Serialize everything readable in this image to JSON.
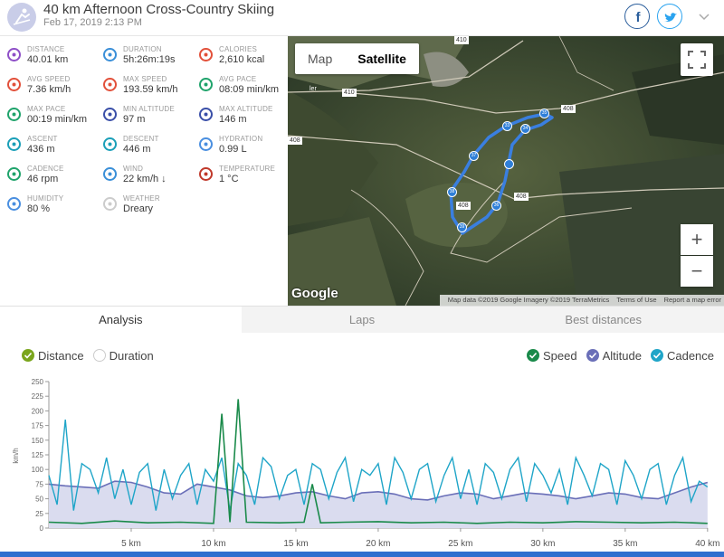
{
  "header": {
    "title": "40 km Afternoon Cross-Country Skiing",
    "subtitle": "Feb 17, 2019 2:13 PM",
    "icons": [
      "skiing-icon",
      "facebook-icon",
      "twitter-icon",
      "chevron-down-icon"
    ]
  },
  "stats": [
    {
      "label": "DISTANCE",
      "value": "40.01 km",
      "icon": "distance-icon",
      "color": "#8e4fc7"
    },
    {
      "label": "DURATION",
      "value": "5h:26m:19s",
      "icon": "stopwatch-icon",
      "color": "#3a8fd8"
    },
    {
      "label": "CALORIES",
      "value": "2,610 kcal",
      "icon": "flame-icon",
      "color": "#e2503a"
    },
    {
      "label": "AVG SPEED",
      "value": "7.36 km/h",
      "icon": "speedometer-icon",
      "color": "#e2503a"
    },
    {
      "label": "MAX SPEED",
      "value": "193.59 km/h",
      "icon": "speedometer-icon",
      "color": "#e2503a"
    },
    {
      "label": "AVG PACE",
      "value": "08:09 min/km",
      "icon": "pace-icon",
      "color": "#1fa36b"
    },
    {
      "label": "MAX PACE",
      "value": "00:19 min/km",
      "icon": "pace-icon",
      "color": "#1fa36b"
    },
    {
      "label": "MIN ALTITUDE",
      "value": "97 m",
      "icon": "mountain-icon",
      "color": "#3a4fa8"
    },
    {
      "label": "MAX ALTITUDE",
      "value": "146 m",
      "icon": "mountain-icon",
      "color": "#3a4fa8"
    },
    {
      "label": "ASCENT",
      "value": "436 m",
      "icon": "ascent-icon",
      "color": "#1a9fb8"
    },
    {
      "label": "DESCENT",
      "value": "446 m",
      "icon": "descent-icon",
      "color": "#1a9fb8"
    },
    {
      "label": "HYDRATION",
      "value": "0.99 L",
      "icon": "water-drops-icon",
      "color": "#4a8fe0"
    },
    {
      "label": "CADENCE",
      "value": "46 rpm",
      "icon": "cadence-icon",
      "color": "#1fa36b"
    },
    {
      "label": "WIND",
      "value": "22 km/h ↓",
      "icon": "wind-icon",
      "color": "#3a8fd8"
    },
    {
      "label": "TEMPERATURE",
      "value": "1 °C",
      "icon": "thermometer-icon",
      "color": "#c0392b"
    },
    {
      "label": "HUMIDITY",
      "value": "80 %",
      "icon": "humidity-icon",
      "color": "#4a8fe0"
    },
    {
      "label": "WEATHER",
      "value": "Dreary",
      "icon": "cloud-icon",
      "color": "#cccccc"
    }
  ],
  "map": {
    "btn_map": "Map",
    "btn_satellite": "Satellite",
    "zoom_in": "+",
    "zoom_out": "−",
    "google": "Google",
    "attribution": "Map data ©2019 Google Imagery ©2019 TerraMetrics",
    "terms": "Terms of Use",
    "report": "Report a map error",
    "road_labels": [
      "410",
      "410",
      "408",
      "408",
      "408",
      "408"
    ],
    "town_fragment": "ler",
    "pin_labels": [
      "35",
      "34",
      "37",
      "33",
      "38",
      "39",
      "36"
    ]
  },
  "tabs": [
    "Analysis",
    "Laps",
    "Best distances"
  ],
  "legend": {
    "distance": "Distance",
    "duration": "Duration",
    "speed": "Speed",
    "altitude": "Altitude",
    "cadence": "Cadence"
  },
  "colors": {
    "distance": "#7aa51c",
    "speed": "#1a8a4a",
    "altitude": "#6a6fb8",
    "cadence": "#1fa5c8",
    "route": "#3a7fe0"
  },
  "chart_data": {
    "type": "line",
    "ylabel": "km/h",
    "ylim": [
      0,
      250
    ],
    "yticks": [
      0,
      25,
      50,
      75,
      100,
      125,
      150,
      175,
      200,
      225,
      250
    ],
    "xlim": [
      0,
      40.01
    ],
    "xticks": [
      "5 km",
      "10 km",
      "15 km",
      "20 km",
      "25 km",
      "30 km",
      "35 km",
      "40 km"
    ],
    "xtick_values": [
      5,
      10,
      15,
      20,
      25,
      30,
      35,
      40
    ],
    "series": [
      {
        "name": "Altitude",
        "x": [
          0,
          1,
          2,
          3,
          4,
          5,
          6,
          7,
          8,
          9,
          10,
          11,
          12,
          13,
          14,
          15,
          16,
          17,
          18,
          19,
          20,
          21,
          22,
          23,
          24,
          25,
          26,
          27,
          28,
          29,
          30,
          31,
          32,
          33,
          34,
          35,
          36,
          37,
          38,
          39,
          40
        ],
        "values": [
          75,
          72,
          70,
          68,
          80,
          78,
          70,
          60,
          58,
          75,
          70,
          65,
          55,
          52,
          55,
          60,
          62,
          55,
          50,
          60,
          62,
          58,
          50,
          48,
          55,
          60,
          58,
          50,
          55,
          60,
          58,
          55,
          50,
          55,
          60,
          58,
          52,
          50,
          60,
          70,
          78
        ]
      },
      {
        "name": "Cadence",
        "x": [
          0,
          0.5,
          1,
          1.5,
          2,
          2.5,
          3,
          3.5,
          4,
          4.5,
          5,
          5.5,
          6,
          6.5,
          7,
          7.5,
          8,
          8.5,
          9,
          9.5,
          10,
          10.5,
          11,
          11.5,
          12,
          12.5,
          13,
          13.5,
          14,
          14.5,
          15,
          15.5,
          16,
          16.5,
          17,
          17.5,
          18,
          18.5,
          19,
          19.5,
          20,
          20.5,
          21,
          21.5,
          22,
          22.5,
          23,
          23.5,
          24,
          24.5,
          25,
          25.5,
          26,
          26.5,
          27,
          27.5,
          28,
          28.5,
          29,
          29.5,
          30,
          30.5,
          31,
          31.5,
          32,
          32.5,
          33,
          33.5,
          34,
          34.5,
          35,
          35.5,
          36,
          36.5,
          37,
          37.5,
          38,
          38.5,
          39,
          39.5,
          40
        ],
        "values": [
          90,
          40,
          185,
          30,
          110,
          100,
          60,
          120,
          50,
          100,
          40,
          95,
          110,
          30,
          100,
          50,
          90,
          110,
          40,
          100,
          80,
          120,
          30,
          110,
          90,
          40,
          120,
          105,
          50,
          90,
          100,
          40,
          110,
          100,
          50,
          95,
          120,
          45,
          100,
          90,
          110,
          40,
          120,
          95,
          50,
          100,
          110,
          45,
          90,
          120,
          50,
          100,
          40,
          110,
          95,
          50,
          100,
          120,
          45,
          110,
          90,
          60,
          100,
          40,
          120,
          90,
          55,
          110,
          100,
          40,
          115,
          90,
          50,
          100,
          110,
          40,
          90,
          120,
          45,
          80,
          70
        ]
      },
      {
        "name": "Speed",
        "x": [
          0,
          2,
          4,
          6,
          8,
          10,
          10.5,
          11,
          11.5,
          12,
          14,
          15.5,
          16,
          16.5,
          18,
          20,
          22,
          24,
          26,
          28,
          30,
          32,
          34,
          36,
          38,
          40
        ],
        "values": [
          10,
          8,
          12,
          9,
          10,
          8,
          195,
          10,
          220,
          10,
          9,
          10,
          75,
          9,
          10,
          11,
          9,
          10,
          8,
          10,
          9,
          11,
          10,
          9,
          10,
          8
        ]
      }
    ]
  }
}
